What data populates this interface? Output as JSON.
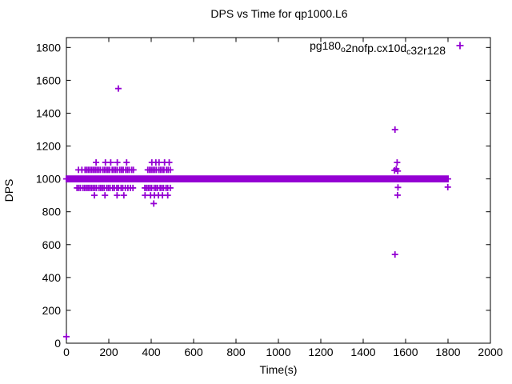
{
  "title": "DPS vs Time for qp1000.L6",
  "xlabel": "Time(s)",
  "ylabel": "DPS",
  "legend": {
    "label": "pg180_o2nofp.cx10d_c32r128",
    "parts": [
      {
        "t": "pg180"
      },
      {
        "s": "o"
      },
      {
        "t": "2nofp.cx10d"
      },
      {
        "s": "c"
      },
      {
        "t": "32r128"
      }
    ],
    "marker": "plus"
  },
  "colors": {
    "series": "#9400D3",
    "axis": "#000000",
    "text": "#000000",
    "background": "#ffffff"
  },
  "chart_data": {
    "type": "scatter",
    "title": "DPS vs Time for qp1000.L6",
    "xlabel": "Time(s)",
    "ylabel": "DPS",
    "xlim": [
      0,
      2000
    ],
    "ylim": [
      0,
      1860
    ],
    "xticks": [
      0,
      200,
      400,
      600,
      800,
      1000,
      1200,
      1400,
      1600,
      1800,
      2000
    ],
    "yticks": [
      0,
      200,
      400,
      600,
      800,
      1000,
      1200,
      1400,
      1600,
      1800
    ],
    "grid": false,
    "legend_position": "top-right-inside",
    "series": [
      {
        "name": "pg180_o2nofp.cx10d_c32r128",
        "marker": "plus",
        "color": "#9400D3",
        "dense_band": {
          "y": 1000,
          "x_from": 0,
          "x_to": 1800,
          "note": "solid band of overlapping + markers at ~1000 DPS across the whole run"
        },
        "rows": [
          {
            "y": 1100,
            "xs": [
              140,
              184,
              209,
              240,
              284,
              403,
              422,
              437,
              463,
              485
            ]
          },
          {
            "y": 1055,
            "xs": [
              57,
              73,
              88,
              96,
              104,
              112,
              120,
              128,
              136,
              144,
              152,
              160,
              172,
              180,
              188,
              196,
              204,
              216,
              224,
              232,
              240,
              252,
              260,
              268,
              280,
              288,
              296,
              308,
              316,
              384,
              392,
              400,
              408,
              416,
              424,
              436,
              444,
              452,
              460,
              472,
              480,
              490
            ]
          },
          {
            "y": 945,
            "xs": [
              50,
              58,
              66,
              78,
              86,
              94,
              102,
              110,
              118,
              126,
              134,
              142,
              154,
              162,
              170,
              178,
              190,
              198,
              206,
              218,
              226,
              238,
              246,
              258,
              266,
              278,
              290,
              302,
              314,
              370,
              378,
              386,
              394,
              402,
              414,
              422,
              430,
              442,
              450,
              458,
              470,
              478,
              490
            ]
          },
          {
            "y": 900,
            "xs": [
              132,
              182,
              239,
              271,
              371,
              397,
              415,
              434,
              453,
              478
            ]
          },
          {
            "y": 850,
            "xs": [
              412
            ]
          }
        ],
        "extra_points": [
          [
            0,
            40
          ],
          [
            245,
            1550
          ],
          [
            1550,
            1300
          ],
          [
            1560,
            1100
          ],
          [
            1548,
            1052
          ],
          [
            1556,
            1061
          ],
          [
            1563,
            1048
          ],
          [
            1564,
            948
          ],
          [
            1562,
            901
          ],
          [
            1550,
            540
          ],
          [
            1799,
            950
          ]
        ]
      }
    ]
  }
}
